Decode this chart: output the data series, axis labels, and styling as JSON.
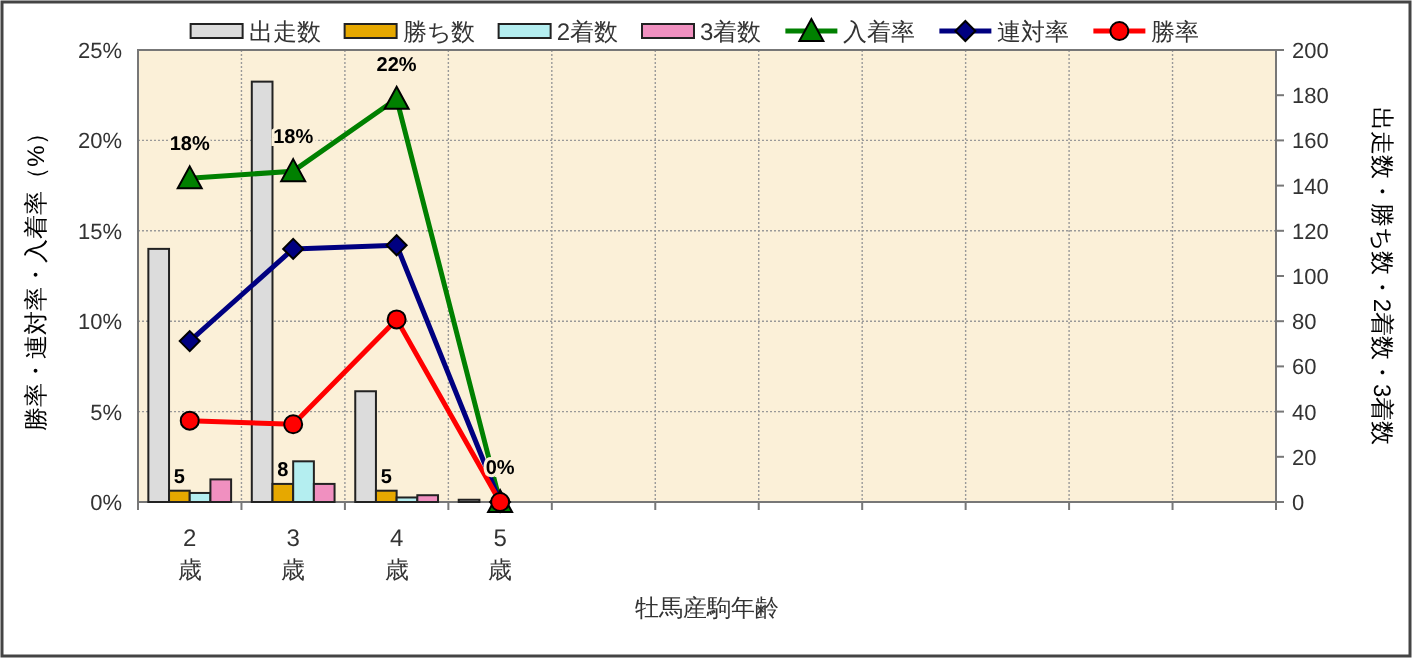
{
  "chart_data": {
    "type": "bar",
    "xlabel": "牡馬産駒年齢",
    "ylabel": "勝率・連対率・入着率（%）",
    "y2label": "出走数・勝ち数・2着数・3着数",
    "categories": [
      "2\n歳",
      "3\n歳",
      "4\n歳",
      "5\n歳",
      null,
      null,
      null,
      null,
      null,
      null,
      null
    ],
    "ylim": [
      0,
      25
    ],
    "yticks": [
      {
        "value": 0,
        "label": "0%"
      },
      {
        "value": 5,
        "label": "5%"
      },
      {
        "value": 10,
        "label": "10%"
      },
      {
        "value": 15,
        "label": "15%"
      },
      {
        "value": 20,
        "label": "20%"
      },
      {
        "value": 25,
        "label": "25%"
      }
    ],
    "y2lim": [
      0,
      200
    ],
    "y2ticks": [
      0,
      20,
      40,
      60,
      80,
      100,
      120,
      140,
      160,
      180,
      200
    ],
    "grid": true,
    "legend": "top",
    "series": [
      {
        "name": "出走数",
        "axis": "y2",
        "color": "#dcdcdc",
        "values": [
          112,
          186,
          49,
          1,
          null,
          null,
          null,
          null,
          null,
          null,
          null
        ]
      },
      {
        "name": "勝ち数",
        "axis": "y2",
        "color": "#e6a800",
        "values": [
          5,
          8,
          5,
          0,
          null,
          null,
          null,
          null,
          null,
          null,
          null
        ],
        "value_labels": [
          "5",
          "8",
          "5",
          null,
          null,
          null,
          null,
          null,
          null,
          null,
          null
        ]
      },
      {
        "name": "2着数",
        "axis": "y2",
        "color": "#b4eef0",
        "values": [
          4,
          18,
          2,
          0,
          null,
          null,
          null,
          null,
          null,
          null,
          null
        ]
      },
      {
        "name": "3着数",
        "axis": "y2",
        "color": "#f090c0",
        "values": [
          10,
          8,
          3,
          0,
          null,
          null,
          null,
          null,
          null,
          null,
          null
        ]
      },
      {
        "name": "入着率",
        "type": "line",
        "marker": "triangle",
        "color": "#008000",
        "values": [
          17.9,
          18.3,
          22.3,
          0,
          null,
          null,
          null,
          null,
          null,
          null,
          null
        ],
        "value_labels": [
          "18%",
          "18%",
          "22%",
          "0%",
          null,
          null,
          null,
          null,
          null,
          null,
          null
        ]
      },
      {
        "name": "連対率",
        "type": "line",
        "marker": "diamond",
        "color": "#000080",
        "values": [
          8.9,
          14.0,
          14.2,
          0,
          null,
          null,
          null,
          null,
          null,
          null,
          null
        ]
      },
      {
        "name": "勝率",
        "type": "line",
        "marker": "circle",
        "color": "#ff0000",
        "values": [
          4.5,
          4.3,
          10.1,
          0,
          null,
          null,
          null,
          null,
          null,
          null,
          null
        ]
      }
    ]
  }
}
